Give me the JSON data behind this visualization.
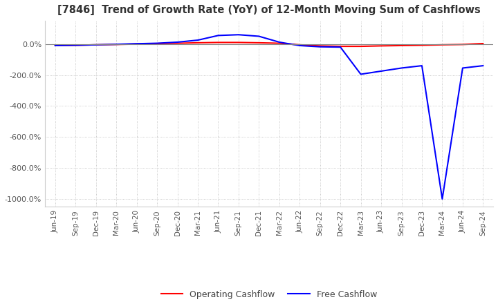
{
  "title": "[7846]  Trend of Growth Rate (YoY) of 12-Month Moving Sum of Cashflows",
  "ylim": [
    -1050,
    150
  ],
  "yticks": [
    0,
    -200,
    -400,
    -600,
    -800,
    -1000
  ],
  "ytick_labels": [
    "0.0%",
    "-200.0%",
    "-400.0%",
    "-600.0%",
    "-800.0%",
    "-1000.0%"
  ],
  "operating_cashflow_color": "#ff0000",
  "free_cashflow_color": "#0000ff",
  "background_color": "#ffffff",
  "grid_color": "#bbbbbb",
  "dates": [
    "Jun-19",
    "Sep-19",
    "Dec-19",
    "Mar-20",
    "Jun-20",
    "Sep-20",
    "Dec-20",
    "Mar-21",
    "Jun-21",
    "Sep-21",
    "Dec-21",
    "Mar-22",
    "Jun-22",
    "Sep-22",
    "Dec-22",
    "Mar-23",
    "Jun-23",
    "Sep-23",
    "Dec-23",
    "Mar-24",
    "Jun-24",
    "Sep-24"
  ],
  "operating_cashflow": [
    -10.0,
    -8.0,
    -5.0,
    -3.0,
    0.0,
    3.0,
    5.0,
    8.0,
    10.0,
    10.0,
    8.0,
    5.0,
    -5.0,
    -12.0,
    -15.0,
    -15.0,
    -12.0,
    -10.0,
    -8.0,
    -5.0,
    -3.0,
    3.0
  ],
  "free_cashflow": [
    -10.0,
    -8.0,
    -5.0,
    -2.0,
    2.0,
    5.0,
    12.0,
    25.0,
    55.0,
    60.0,
    50.0,
    12.0,
    -10.0,
    -18.0,
    -20.0,
    -195.0,
    -175.0,
    -155.0,
    -140.0,
    -1000.0,
    -155.0,
    -140.0
  ],
  "legend_labels": [
    "Operating Cashflow",
    "Free Cashflow"
  ]
}
